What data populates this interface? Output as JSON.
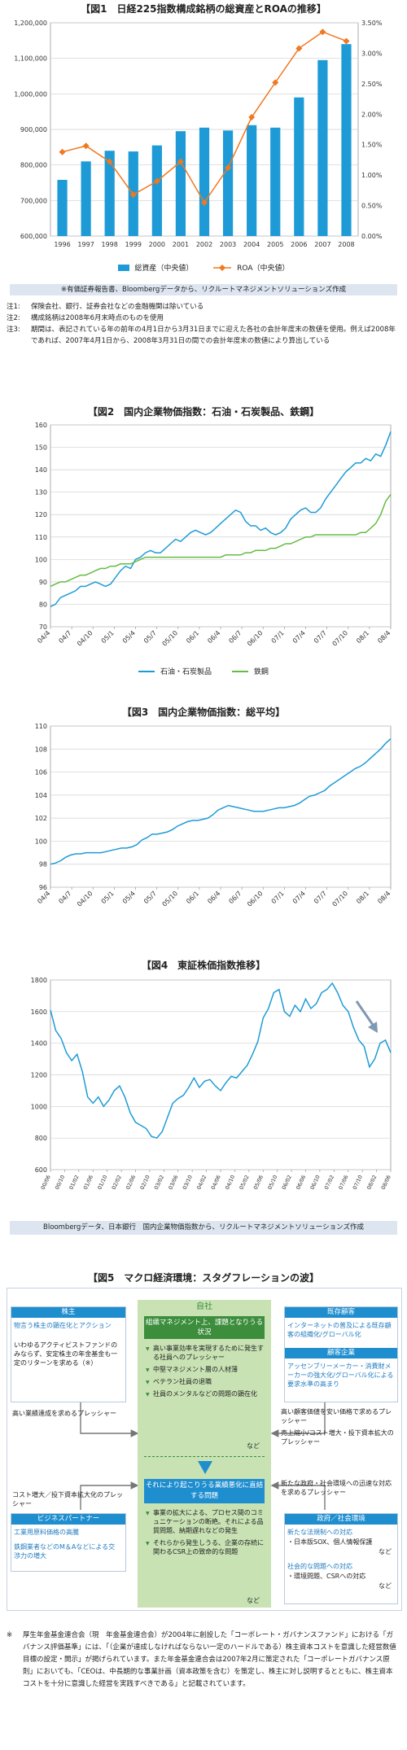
{
  "fig1": {
    "title": "【図1　日経225指数構成銘柄の総資産とROAの推移】",
    "legend": {
      "assets": "総資産（中央値）",
      "roa": "ROA（中央値）"
    },
    "source": "※有価証券報告書、Bloombergデータから、リクルートマネジメントソリューションズ作成",
    "notes": [
      {
        "label": "注1:",
        "text": "保険会社、銀行、証券会社などの金融機関は除いている"
      },
      {
        "label": "注2:",
        "text": "構成銘柄は2008年6月末時点のものを使用"
      },
      {
        "label": "注3:",
        "text": "期間は、表記されている年の前年の4月1日から3月31日までに迎えた各社の会計年度末の数値を使用。例えば2008年であれば、2007年4月1日から、2008年3月31日の間での会計年度末の数値により算出している"
      }
    ]
  },
  "fig2": {
    "title": "【図2　国内企業物価指数：石油・石炭製品、鉄鋼】",
    "legend": {
      "oil": "石油・石炭製品",
      "steel": "鉄鋼"
    }
  },
  "fig3": {
    "title": "【図3　国内企業物価指数：総平均】"
  },
  "fig4": {
    "title": "【図4　東証株価指数推移】",
    "source": "Bloombergデータ、日本銀行　国内企業物価指数から、リクルートマネジメントソリューションズ作成"
  },
  "fig5": {
    "title": "【図5　マクロ経済環境：スタグフレーションの波】",
    "center": {
      "label": "自社",
      "top_header": "組織マネジメント上、課題となりうる状況",
      "top_items": [
        "高い事業効率を実現するために発生する社員へのプレッシャー",
        "中堅マネジメント層の人材薄",
        "ベテラン社員の退職",
        "社員のメンタルなどの問題の顕在化"
      ],
      "top_etc": "など",
      "bottom_header": "それにより起こりうる業績悪化に直結する問題",
      "bottom_items": [
        "事業の拡大による、プロセス間のコミュニケーションの断絶。それによる品質問題、納期遅れなどの発生",
        "それらから発生しうる、企業の存続に関わるCSR上の致命的な問題"
      ],
      "bottom_etc": "など"
    },
    "shareholders": {
      "header": "株主",
      "lead": "物言う株主の顕在化とアクション",
      "body": "いわゆるアクティビストファンドのみならず、安定株主の年金基金も一定のリターンを求める（※）"
    },
    "pressure_left_top": "高い業績達成を求めるプレッシャー",
    "customers": {
      "header": "既存顧客",
      "lead": "インターネットの普及による既存顧客の組織化/グローバル化",
      "header2": "顧客企業",
      "lead2": "アッセンブリーメーカー・消費財メーカーの強大化/グローバル化による要求水準の高まり"
    },
    "pressure_right_top": "高い顧客価値を安い価格で求めるプレッシャー",
    "pressure_right_top2": "売上縮小/コスト増大・投下資本拡大のプレッシャー",
    "pressure_left_bottom": "コスト増大／投下資本拡大化のプレッシャー",
    "partners": {
      "header": "ビジネスパートナー",
      "lead": "工業用原料価格の高騰",
      "lead2": "鉄鋼業者などのM＆Aなどによる交渉力の増大"
    },
    "pressure_right_bottom": "新たな政府・社会環境への迅速な対応を求めるプレッシャー",
    "government": {
      "header": "政府／社会環境",
      "lead": "新たな法規制への対応",
      "item": "・日本版SOX、個人情報保護",
      "etc": "など",
      "lead2": "社会的な問題への対応",
      "item2": "・環境問題、CSRへの対応",
      "etc2": "など"
    }
  },
  "footer": {
    "mark": "※",
    "text": "厚生年金基金連合会（現　年金基金連合会）が2004年に創設した「コーポレート・ガバナンスファンド」における「ガバナンス評価基準」には、「（企業が達成しなければならない一定のハードルである）株主資本コストを意識した経営数値目標の設定・開示」が掲げられています。また年金基金連合会は2007年2月に策定された「コーポレートガバナンス原則」においても、「CEOは、中長期的な事業計画（資本政策を含む）を策定し、株主に対し説明するとともに、株主資本コストを十分に意識した経営を実践すべきである」と記載されています。"
  },
  "chart_data": [
    {
      "type": "bar",
      "categories": [
        "1996",
        "1997",
        "1998",
        "1999",
        "2000",
        "2001",
        "2002",
        "2003",
        "2004",
        "2005",
        "2006",
        "2007",
        "2008"
      ],
      "series": [
        {
          "name": "総資産（中央値）",
          "type": "bar",
          "axis": "left",
          "values": [
            758000,
            810000,
            840000,
            838000,
            855000,
            895000,
            905000,
            897000,
            912000,
            905000,
            990000,
            1095000,
            1140000
          ]
        },
        {
          "name": "ROA（中央値）",
          "type": "line",
          "axis": "right",
          "values": [
            1.38,
            1.48,
            1.22,
            0.68,
            0.9,
            1.22,
            0.55,
            1.12,
            1.95,
            2.52,
            3.08,
            3.35,
            3.2
          ]
        }
      ],
      "ylim": [
        600000,
        1200000
      ],
      "yticks": [
        "600,000",
        "700,000",
        "800,000",
        "900,000",
        "1,000,000",
        "1,100,000",
        "1,200,000"
      ],
      "y2lim": [
        0,
        3.5
      ],
      "y2ticks": [
        "0.00%",
        "0.50%",
        "1.00%",
        "1.50%",
        "2.00%",
        "2.50%",
        "3.00%",
        "3.50%"
      ],
      "grid": true,
      "legend": "bottom",
      "colors": {
        "bar": "#1e9bd7",
        "line": "#f07820"
      }
    },
    {
      "type": "line",
      "xticks": [
        "04/4",
        "04/7",
        "04/10",
        "05/1",
        "05/4",
        "05/7",
        "05/10",
        "06/1",
        "06/4",
        "06/7",
        "06/10",
        "07/1",
        "07/4",
        "07/7",
        "07/10",
        "08/1",
        "08/4"
      ],
      "series": [
        {
          "name": "石油・石炭製品",
          "color": "#1e9bd7",
          "values": [
            79,
            80,
            83,
            84,
            85,
            86,
            88,
            88,
            89,
            90,
            89,
            88,
            89,
            92,
            95,
            97,
            96,
            100,
            101,
            103,
            104,
            103,
            103,
            105,
            107,
            109,
            108,
            110,
            112,
            113,
            112,
            111,
            112,
            114,
            116,
            118,
            120,
            122,
            121,
            117,
            115,
            115,
            113,
            114,
            112,
            111,
            112,
            114,
            118,
            120,
            122,
            123,
            121,
            121,
            123,
            127,
            130,
            133,
            136,
            139,
            141,
            143,
            143,
            145,
            144,
            147,
            146,
            151,
            157
          ]
        },
        {
          "name": "鉄鋼",
          "color": "#66bb44",
          "values": [
            88,
            89,
            90,
            90,
            91,
            92,
            93,
            93,
            94,
            95,
            96,
            96,
            97,
            97,
            98,
            98,
            98,
            99,
            100,
            101,
            101,
            101,
            101,
            101,
            101,
            101,
            101,
            101,
            101,
            101,
            101,
            101,
            101,
            101,
            101,
            102,
            102,
            102,
            102,
            103,
            103,
            104,
            104,
            104,
            105,
            105,
            106,
            107,
            107,
            108,
            109,
            110,
            110,
            111,
            111,
            111,
            111,
            111,
            111,
            111,
            111,
            111,
            112,
            112,
            114,
            116,
            120,
            126,
            129
          ]
        }
      ],
      "ylim": [
        70,
        160
      ],
      "yticks": [
        70,
        80,
        90,
        100,
        110,
        120,
        130,
        140,
        150,
        160
      ],
      "grid": true,
      "legend": "bottom"
    },
    {
      "type": "line",
      "xticks": [
        "04/4",
        "04/7",
        "04/10",
        "05/1",
        "05/4",
        "05/7",
        "05/10",
        "06/1",
        "06/4",
        "06/7",
        "06/10",
        "07/1",
        "07/4",
        "07/7",
        "07/10",
        "08/1",
        "08/4"
      ],
      "series": [
        {
          "name": "",
          "color": "#1e9bd7",
          "values": [
            98.0,
            98.1,
            98.3,
            98.6,
            98.8,
            98.9,
            98.9,
            99.0,
            99.0,
            99.0,
            99.0,
            99.1,
            99.2,
            99.3,
            99.4,
            99.4,
            99.5,
            99.7,
            100.1,
            100.3,
            100.6,
            100.6,
            100.7,
            100.8,
            101.0,
            101.3,
            101.5,
            101.7,
            101.8,
            101.8,
            101.9,
            102.0,
            102.3,
            102.7,
            102.9,
            103.1,
            103.0,
            102.9,
            102.8,
            102.7,
            102.6,
            102.6,
            102.6,
            102.7,
            102.8,
            102.9,
            102.9,
            103.0,
            103.1,
            103.3,
            103.6,
            103.9,
            104.0,
            104.2,
            104.4,
            104.8,
            105.1,
            105.4,
            105.7,
            106.0,
            106.3,
            106.5,
            106.8,
            107.2,
            107.6,
            108.0,
            108.5,
            108.9
          ]
        }
      ],
      "ylim": [
        96,
        110
      ],
      "yticks": [
        96,
        98,
        100,
        102,
        104,
        106,
        108,
        110
      ],
      "grid": true
    },
    {
      "type": "line",
      "xticks": [
        "00/06",
        "00/10",
        "01/02",
        "01/06",
        "01/10",
        "02/02",
        "02/06",
        "02/10",
        "03/02",
        "03/06",
        "03/10",
        "04/02",
        "04/06",
        "04/10",
        "05/02",
        "05/06",
        "05/10",
        "06/02",
        "06/06",
        "06/10",
        "07/02",
        "07/06",
        "07/10",
        "08/02",
        "08/06"
      ],
      "series": [
        {
          "name": "",
          "color": "#1e9bd7",
          "values": [
            1610,
            1480,
            1430,
            1340,
            1290,
            1330,
            1220,
            1060,
            1020,
            1060,
            1000,
            1040,
            1100,
            1130,
            1060,
            960,
            900,
            880,
            860,
            810,
            800,
            840,
            930,
            1020,
            1050,
            1070,
            1120,
            1180,
            1120,
            1160,
            1170,
            1130,
            1100,
            1150,
            1190,
            1180,
            1220,
            1260,
            1330,
            1410,
            1560,
            1620,
            1720,
            1740,
            1600,
            1570,
            1640,
            1600,
            1680,
            1620,
            1650,
            1720,
            1740,
            1780,
            1720,
            1640,
            1600,
            1500,
            1420,
            1380,
            1250,
            1300,
            1400,
            1420,
            1340
          ]
        }
      ],
      "ylim": [
        600,
        1800
      ],
      "yticks": [
        600,
        800,
        1000,
        1200,
        1400,
        1600,
        1800
      ],
      "grid": true,
      "annotation": "downward arrow near the end of the series"
    }
  ]
}
